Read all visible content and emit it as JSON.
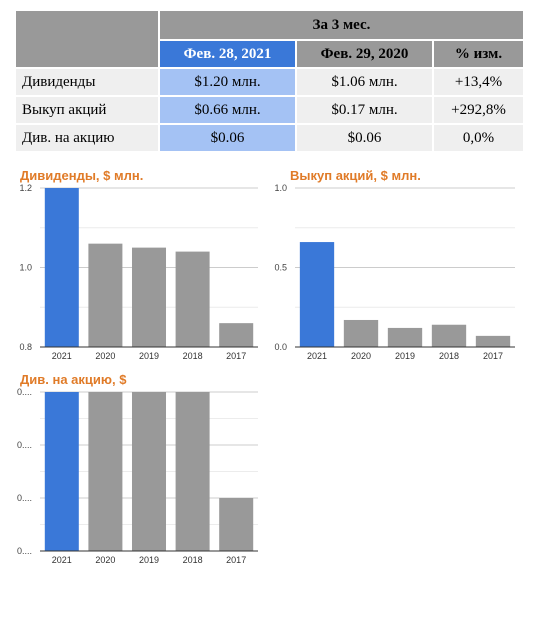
{
  "table": {
    "period_header": "За 3 мес.",
    "columns": [
      "Фев. 28, 2021",
      "Фев. 29, 2020",
      "% изм."
    ],
    "rows": [
      {
        "label": "Дивиденды",
        "cur": "$1.20 млн.",
        "prev": "$1.06 млн.",
        "chg": "+13,4%"
      },
      {
        "label": "Выкуп акций",
        "cur": "$0.66 млн.",
        "prev": "$0.17 млн.",
        "chg": "+292,8%"
      },
      {
        "label": "Див. на акцию",
        "cur": "$0.06",
        "prev": "$0.06",
        "chg": "0,0%"
      }
    ]
  },
  "colors": {
    "highlight": "#3a78d8",
    "bar": "#999999",
    "title": "#e07b28"
  },
  "chart_data": [
    {
      "type": "bar",
      "title": "Дивиденды, $ млн.",
      "categories": [
        "2021",
        "2020",
        "2019",
        "2018",
        "2017"
      ],
      "values": [
        1.2,
        1.06,
        1.05,
        1.04,
        0.86
      ],
      "ylim": [
        0.8,
        1.2
      ],
      "yticks": [
        0.8,
        1.0,
        1.2
      ],
      "ytick_labels": [
        "0.8",
        "1.0",
        "1.2"
      ],
      "grid": true
    },
    {
      "type": "bar",
      "title": "Выкуп акций, $ млн.",
      "categories": [
        "2021",
        "2020",
        "2019",
        "2018",
        "2017"
      ],
      "values": [
        0.66,
        0.17,
        0.12,
        0.14,
        0.07
      ],
      "ylim": [
        0,
        1.0
      ],
      "yticks": [
        0,
        0.5,
        1.0
      ],
      "ytick_labels": [
        "0.0",
        "0.5",
        "1.0"
      ],
      "grid": true
    },
    {
      "type": "bar",
      "title": "Див. на акцию, $",
      "categories": [
        "2021",
        "2020",
        "2019",
        "2018",
        "2017"
      ],
      "values": [
        0.06,
        0.06,
        0.06,
        0.06,
        0.05
      ],
      "ylim": [
        0.045,
        0.06
      ],
      "yticks": [
        0.045,
        0.05,
        0.055,
        0.06
      ],
      "ytick_labels": [
        "0....",
        "0....",
        "0....",
        "0...."
      ],
      "grid": true
    }
  ]
}
